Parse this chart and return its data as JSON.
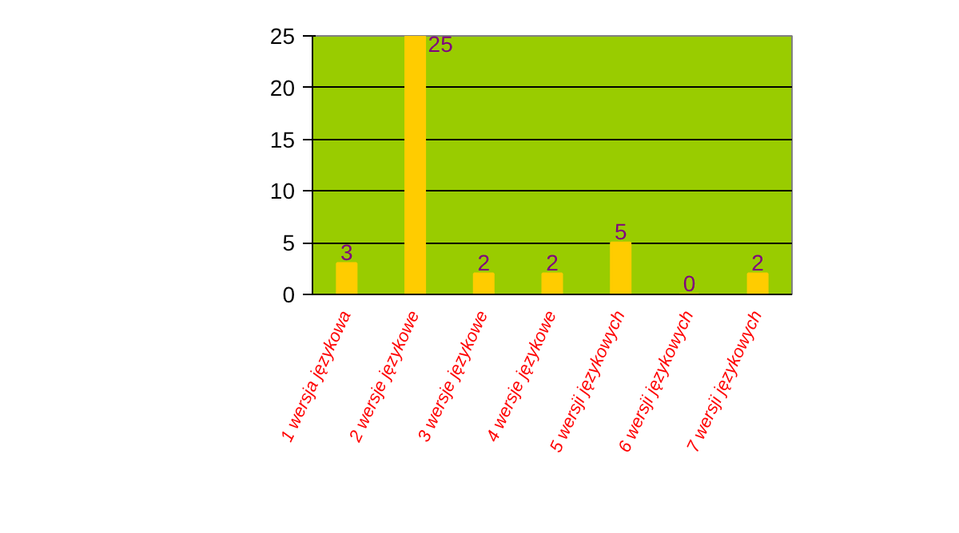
{
  "chart_data": {
    "type": "bar",
    "categories": [
      "1 wersja językowa",
      "2 wersje językowe",
      "3 wersje językowe",
      "4 wersje językowe",
      "5 wersji językowych",
      "6 wersji językowych",
      "7 wersji językowych"
    ],
    "values": [
      3,
      25,
      2,
      2,
      5,
      0,
      2
    ],
    "color": "#ffcc00",
    "ylim": [
      0,
      25
    ],
    "yticks": [
      0,
      5,
      10,
      15,
      20,
      25
    ],
    "grid": "y",
    "data_labels": true
  }
}
